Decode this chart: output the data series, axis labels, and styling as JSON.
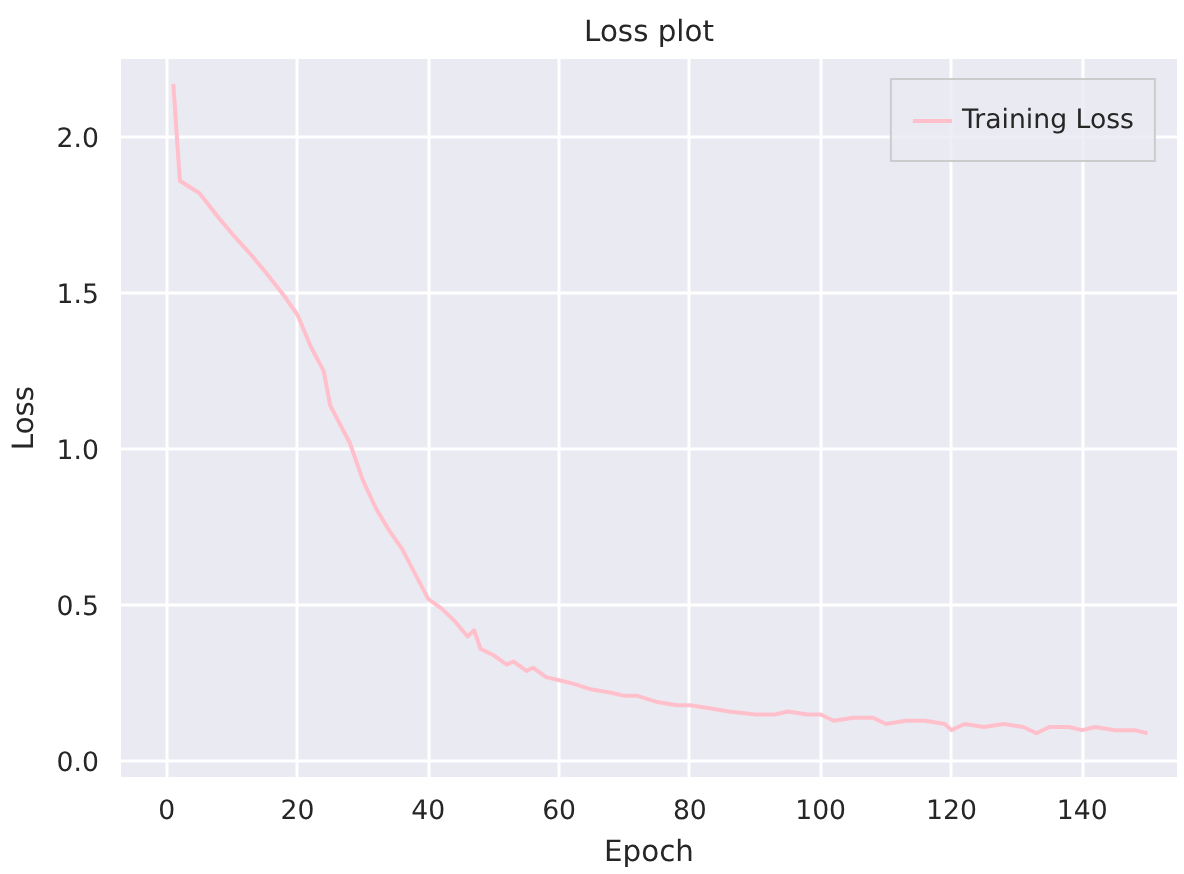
{
  "chart_data": {
    "type": "line",
    "title": "Loss plot",
    "xlabel": "Epoch",
    "ylabel": "Loss",
    "xlim": [
      -7,
      154.5
    ],
    "ylim": [
      -0.05,
      2.25
    ],
    "xticks": [
      0,
      20,
      40,
      60,
      80,
      100,
      120,
      140
    ],
    "yticks": [
      {
        "value": 0,
        "label": "0.0"
      },
      {
        "value": 0.5,
        "label": "0.5"
      },
      {
        "value": 1,
        "label": "1.0"
      },
      {
        "value": 1.5,
        "label": "1.5"
      },
      {
        "value": 2,
        "label": "2.0"
      }
    ],
    "grid": true,
    "legend": "top right",
    "series": [
      {
        "name": "Training Loss",
        "color": "#ffc0cb",
        "x": [
          1,
          2,
          5,
          8,
          10,
          13,
          15,
          18,
          20,
          22,
          24,
          25,
          26,
          28,
          30,
          32,
          34,
          36,
          38,
          40,
          42,
          44,
          46,
          47,
          48,
          50,
          52,
          53,
          55,
          56,
          58,
          60,
          62,
          65,
          68,
          70,
          72,
          75,
          78,
          80,
          83,
          86,
          90,
          93,
          95,
          98,
          100,
          102,
          105,
          108,
          110,
          113,
          116,
          119,
          120,
          122,
          125,
          128,
          131,
          133,
          135,
          138,
          140,
          142,
          145,
          148,
          150
        ],
        "values": [
          2.17,
          1.86,
          1.82,
          1.74,
          1.69,
          1.62,
          1.57,
          1.49,
          1.43,
          1.33,
          1.25,
          1.14,
          1.1,
          1.02,
          0.9,
          0.81,
          0.74,
          0.68,
          0.6,
          0.52,
          0.49,
          0.45,
          0.4,
          0.42,
          0.36,
          0.34,
          0.31,
          0.32,
          0.29,
          0.3,
          0.27,
          0.26,
          0.25,
          0.23,
          0.22,
          0.21,
          0.21,
          0.19,
          0.18,
          0.18,
          0.17,
          0.16,
          0.15,
          0.15,
          0.16,
          0.15,
          0.15,
          0.13,
          0.14,
          0.14,
          0.12,
          0.13,
          0.13,
          0.12,
          0.1,
          0.12,
          0.11,
          0.12,
          0.11,
          0.09,
          0.11,
          0.11,
          0.1,
          0.11,
          0.1,
          0.1,
          0.09
        ]
      }
    ]
  }
}
